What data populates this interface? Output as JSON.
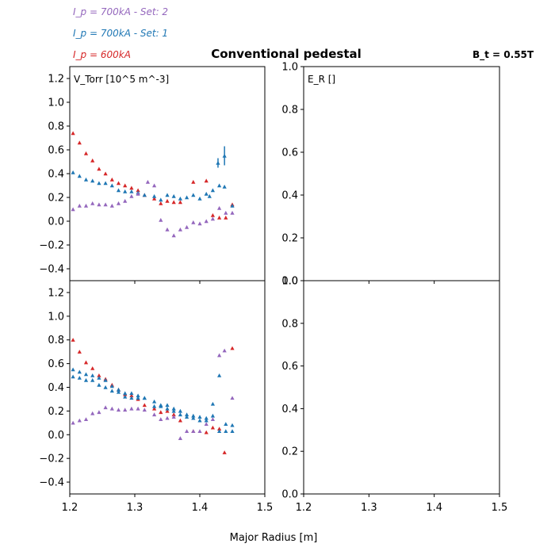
{
  "figure": {
    "title": "Conventional pedestal",
    "field_label": "B_t = 0.55T",
    "xlabel": "Major Radius [m]"
  },
  "legend": [
    {
      "label": "I_p = 700kA - Set: 2",
      "color": "#9467bd"
    },
    {
      "label": "I_p = 700kA - Set: 1",
      "color": "#1f77b4"
    },
    {
      "label": "I_p = 600kA",
      "color": "#d62728"
    }
  ],
  "chart_data": [
    {
      "type": "scatter",
      "panel": "top-left",
      "ylabel": "V_Torr [10^5 m^-3]",
      "xlim": [
        1.2,
        1.5
      ],
      "ylim": [
        -0.5,
        1.3
      ],
      "xticks": [
        1.2,
        1.3,
        1.4,
        1.5
      ],
      "yticks": [
        -0.4,
        -0.2,
        0.0,
        0.2,
        0.4,
        0.6,
        0.8,
        1.0,
        1.2
      ],
      "show_xticklabels": false,
      "series": [
        {
          "name": "I_p = 600kA",
          "color": "#d62728",
          "x": [
            1.205,
            1.215,
            1.225,
            1.235,
            1.245,
            1.255,
            1.265,
            1.275,
            1.285,
            1.295,
            1.305,
            1.315,
            1.33,
            1.34,
            1.35,
            1.36,
            1.37,
            1.39,
            1.41,
            1.42,
            1.43,
            1.44,
            1.45
          ],
          "y": [
            0.74,
            0.66,
            0.57,
            0.51,
            0.44,
            0.4,
            0.35,
            0.32,
            0.3,
            0.28,
            0.26,
            0.22,
            0.19,
            0.15,
            0.17,
            0.16,
            0.16,
            0.33,
            0.34,
            0.05,
            0.03,
            0.03,
            0.14
          ]
        },
        {
          "name": "I_p = 700kA - Set: 1",
          "color": "#1f77b4",
          "x": [
            1.205,
            1.215,
            1.225,
            1.235,
            1.245,
            1.255,
            1.265,
            1.275,
            1.285,
            1.295,
            1.305,
            1.315,
            1.33,
            1.34,
            1.35,
            1.36,
            1.37,
            1.38,
            1.39,
            1.4,
            1.41,
            1.415,
            1.42,
            1.43,
            1.438,
            1.45
          ],
          "y": [
            0.41,
            0.38,
            0.35,
            0.34,
            0.32,
            0.32,
            0.3,
            0.26,
            0.25,
            0.25,
            0.24,
            0.22,
            0.21,
            0.18,
            0.22,
            0.21,
            0.19,
            0.2,
            0.22,
            0.19,
            0.23,
            0.21,
            0.26,
            0.3,
            0.29,
            0.13
          ],
          "err": [
            0,
            0,
            0,
            0,
            0,
            0,
            0,
            0,
            0,
            0,
            0,
            0,
            0,
            0,
            0,
            0,
            0,
            0,
            0,
            0,
            0,
            0,
            0,
            0,
            0,
            0
          ]
        },
        {
          "name": "I_p = 700kA - Set: 2",
          "color": "#9467bd",
          "x": [
            1.205,
            1.215,
            1.225,
            1.235,
            1.245,
            1.255,
            1.265,
            1.275,
            1.285,
            1.295,
            1.305,
            1.32,
            1.33,
            1.34,
            1.35,
            1.36,
            1.37,
            1.38,
            1.39,
            1.4,
            1.41,
            1.42,
            1.43,
            1.44,
            1.45
          ],
          "y": [
            0.1,
            0.13,
            0.13,
            0.15,
            0.14,
            0.14,
            0.13,
            0.15,
            0.17,
            0.21,
            0.23,
            0.33,
            0.3,
            0.01,
            -0.07,
            -0.12,
            -0.07,
            -0.05,
            -0.01,
            -0.02,
            0.0,
            0.02,
            0.11,
            0.07,
            0.07
          ]
        }
      ],
      "extra_points": [
        {
          "series": 1,
          "x": 1.428,
          "y": 0.49,
          "err": 0.04
        },
        {
          "series": 1,
          "x": 1.438,
          "y": 0.55,
          "err": 0.08
        }
      ]
    },
    {
      "type": "scatter",
      "panel": "bottom-left",
      "ylabel": "",
      "xlim": [
        1.2,
        1.5
      ],
      "ylim": [
        -0.5,
        1.3
      ],
      "xticks": [
        1.2,
        1.3,
        1.4,
        1.5
      ],
      "yticks": [
        -0.4,
        -0.2,
        0.0,
        0.2,
        0.4,
        0.6,
        0.8,
        1.0,
        1.2
      ],
      "show_xticklabels": true,
      "series": [
        {
          "name": "I_p = 600kA",
          "color": "#d62728",
          "x": [
            1.205,
            1.215,
            1.225,
            1.235,
            1.245,
            1.255,
            1.265,
            1.275,
            1.285,
            1.295,
            1.305,
            1.315,
            1.33,
            1.34,
            1.35,
            1.36,
            1.37,
            1.39,
            1.41,
            1.42,
            1.43,
            1.438,
            1.45
          ],
          "y": [
            0.8,
            0.7,
            0.61,
            0.56,
            0.5,
            0.47,
            0.42,
            0.38,
            0.34,
            0.33,
            0.3,
            0.25,
            0.22,
            0.19,
            0.2,
            0.17,
            0.12,
            0.03,
            0.02,
            0.06,
            0.05,
            -0.15,
            0.73
          ]
        },
        {
          "name": "I_p = 700kA - Set: 1",
          "color": "#1f77b4",
          "x": [
            1.205,
            1.215,
            1.225,
            1.235,
            1.245,
            1.255,
            1.265,
            1.275,
            1.285,
            1.295,
            1.305,
            1.315,
            1.33,
            1.34,
            1.35,
            1.36,
            1.37,
            1.38,
            1.39,
            1.4,
            1.41,
            1.42,
            1.43,
            1.44,
            1.45
          ],
          "y": [
            0.55,
            0.53,
            0.51,
            0.5,
            0.48,
            0.46,
            0.41,
            0.38,
            0.35,
            0.35,
            0.33,
            0.31,
            0.28,
            0.25,
            0.25,
            0.22,
            0.2,
            0.17,
            0.16,
            0.15,
            0.14,
            0.26,
            0.5,
            0.09,
            0.08
          ]
        },
        {
          "name": "I_p = 700kA - Set: 1b",
          "color": "#1f77b4",
          "x": [
            1.205,
            1.215,
            1.225,
            1.235,
            1.245,
            1.255,
            1.265,
            1.275,
            1.285,
            1.295,
            1.305,
            1.315,
            1.33,
            1.34,
            1.35,
            1.36,
            1.37,
            1.38,
            1.39,
            1.4,
            1.41,
            1.42,
            1.43,
            1.44,
            1.45
          ],
          "y": [
            0.49,
            0.48,
            0.46,
            0.46,
            0.42,
            0.4,
            0.37,
            0.36,
            0.32,
            0.31,
            0.31,
            0.31,
            0.24,
            0.24,
            0.22,
            0.2,
            0.17,
            0.15,
            0.14,
            0.12,
            0.12,
            0.16,
            0.03,
            0.03,
            0.03
          ]
        },
        {
          "name": "I_p = 700kA - Set: 2",
          "color": "#9467bd",
          "x": [
            1.205,
            1.215,
            1.225,
            1.235,
            1.245,
            1.255,
            1.265,
            1.275,
            1.285,
            1.295,
            1.305,
            1.315,
            1.33,
            1.34,
            1.35,
            1.36,
            1.37,
            1.38,
            1.39,
            1.4,
            1.41,
            1.42,
            1.43,
            1.438,
            1.45
          ],
          "y": [
            0.1,
            0.12,
            0.13,
            0.18,
            0.19,
            0.23,
            0.22,
            0.21,
            0.21,
            0.22,
            0.22,
            0.21,
            0.17,
            0.13,
            0.14,
            0.15,
            -0.03,
            0.03,
            0.03,
            0.03,
            0.09,
            0.13,
            0.67,
            0.71,
            0.31
          ]
        }
      ]
    },
    {
      "type": "scatter",
      "panel": "top-right",
      "ylabel": "E_R []",
      "xlim": [
        1.2,
        1.5
      ],
      "ylim": [
        0.0,
        1.0
      ],
      "xticks": [
        1.2,
        1.3,
        1.4,
        1.5
      ],
      "yticks": [
        0.0,
        0.2,
        0.4,
        0.6,
        0.8,
        1.0
      ],
      "show_xticklabels": false,
      "series": []
    },
    {
      "type": "scatter",
      "panel": "bottom-right",
      "ylabel": "",
      "xlim": [
        1.2,
        1.5
      ],
      "ylim": [
        0.0,
        1.0
      ],
      "xticks": [
        1.2,
        1.3,
        1.4,
        1.5
      ],
      "yticks": [
        0.0,
        0.2,
        0.4,
        0.6,
        0.8,
        1.0
      ],
      "show_xticklabels": true,
      "series": []
    }
  ]
}
